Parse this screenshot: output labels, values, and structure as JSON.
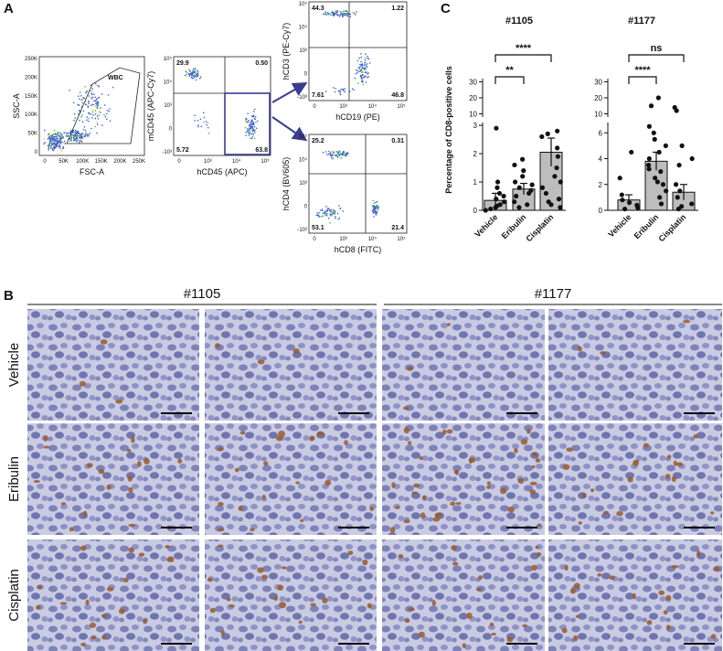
{
  "panel_labels": [
    "A",
    "B",
    "C"
  ],
  "panel_a": {
    "plots": [
      {
        "x_label": "FSC-A",
        "y_label": "SSC-A",
        "gate_label": "WBC",
        "xticks": [
          "0",
          "50K",
          "100K",
          "150K",
          "200K",
          "250K"
        ],
        "yticks": [
          "250K",
          "200K",
          "150K",
          "100K",
          "50K",
          "0"
        ]
      },
      {
        "x_label": "hCD45 (APC)",
        "y_label": "mCD45 (APC-Cy7)",
        "quadrants": [
          "29.9",
          "0.50",
          "5.72",
          "63.8"
        ],
        "xticks": [
          "0",
          "10³",
          "10⁴",
          "10⁵"
        ],
        "yticks": [
          "10⁵",
          "10⁴",
          "10³",
          "0",
          "-10³"
        ]
      },
      {
        "x_label": "hCD19 (PE)",
        "y_label": "hCD3 (PE-Cy7)",
        "quadrants": [
          "44.3",
          "1.22",
          "7.61",
          "46.8"
        ],
        "xticks": [
          "0",
          "10³",
          "10⁴",
          "10⁵"
        ],
        "yticks": [
          "10⁵",
          "10⁴",
          "10³",
          "0",
          "-10³"
        ]
      },
      {
        "x_label": "hCD8 (FITC)",
        "y_label": "hCD4 (BV605)",
        "quadrants": [
          "25.2",
          "0.31",
          "53.1",
          "21.4"
        ],
        "xticks": [
          "0",
          "10³",
          "10⁴",
          "10⁵"
        ],
        "yticks": [
          "10⁵",
          "10⁴",
          "10³",
          "0",
          "-10³"
        ]
      }
    ]
  },
  "panel_b": {
    "columns": [
      "#1105",
      "#1177"
    ],
    "rows": [
      "Vehicle",
      "Eribulin",
      "Cisplatin"
    ]
  },
  "panel_c": {
    "y_label": "Percentage of CD8-positive cells",
    "charts": [
      {
        "type": "bar",
        "title": "#1105",
        "categories": [
          "Vehicle",
          "Eribulin",
          "Cisplatin"
        ],
        "color": "#bdbdbd",
        "values": [
          0.35,
          0.75,
          2.05
        ],
        "errors": [
          0.25,
          0.2,
          0.5
        ],
        "points": [
          [
            0.1,
            0.2,
            0.3,
            0.5,
            0.6,
            0.8,
            1.0,
            0.05,
            0.15,
            0.4,
            2.9,
            0.0
          ],
          [
            0.1,
            0.3,
            0.5,
            0.7,
            0.9,
            1.0,
            1.2,
            1.4,
            1.6,
            1.8,
            0.2,
            0.6,
            0.8
          ],
          [
            0.1,
            0.2,
            0.4,
            0.8,
            1.2,
            1.5,
            1.9,
            2.2,
            2.6,
            2.8,
            2.7,
            0.3,
            0.6,
            1.0
          ]
        ],
        "ylim": [
          0,
          3.1
        ],
        "yticks": [
          0,
          1,
          2,
          3
        ],
        "ylim_upper": [
          8,
          32
        ],
        "yticks_upper": [
          10,
          20,
          30
        ],
        "significance": [
          {
            "from": 0,
            "to": 1,
            "label": "**"
          },
          {
            "from": 0,
            "to": 2,
            "label": "****"
          }
        ]
      },
      {
        "type": "bar",
        "title": "#1177",
        "categories": [
          "Vehicle",
          "Eribulin",
          "Cisplatin"
        ],
        "color": "#bdbdbd",
        "values": [
          0.8,
          3.8,
          1.4
        ],
        "errors": [
          0.4,
          0.7,
          0.6
        ],
        "points": [
          [
            0.2,
            0.4,
            0.6,
            0.8,
            1.2,
            2.5,
            4.5,
            0.1
          ],
          [
            0.5,
            1,
            1.5,
            2,
            2.5,
            3,
            3.5,
            4,
            4.5,
            5,
            5.5,
            6,
            6.5,
            2.2,
            3.2,
            15,
            20
          ],
          [
            0.1,
            0.3,
            0.5,
            1,
            1.5,
            2,
            3.5,
            4,
            5,
            12,
            14
          ]
        ],
        "ylim": [
          0,
          6.8
        ],
        "yticks": [
          0,
          2,
          4,
          6
        ],
        "ylim_upper": [
          8,
          32
        ],
        "yticks_upper": [
          10,
          20,
          30
        ],
        "significance": [
          {
            "from": 0,
            "to": 1,
            "label": "****"
          },
          {
            "from": 0,
            "to": 2,
            "label": "ns"
          }
        ]
      }
    ]
  }
}
